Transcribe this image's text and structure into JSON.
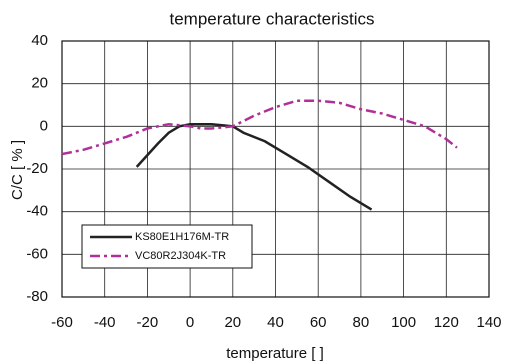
{
  "chart_data": {
    "type": "line",
    "title": "temperature characteristics",
    "xlabel": "temperature [     ]",
    "ylabel": "C/C [ % ]",
    "xlim": [
      -60,
      140
    ],
    "xticks": [
      -60,
      -40,
      -20,
      0,
      20,
      40,
      60,
      80,
      100,
      120,
      140
    ],
    "ylim": [
      -80,
      40
    ],
    "yticks": [
      -80,
      -60,
      -40,
      -20,
      0,
      20,
      40
    ],
    "grid": true,
    "legend": "lower left",
    "series": [
      {
        "name": "KS80E1H176M-TR",
        "color": "#222222",
        "dash": "solid",
        "x": [
          -25,
          -15,
          -10,
          -5,
          0,
          5,
          10,
          15,
          20,
          25,
          35,
          45,
          55,
          65,
          75,
          85
        ],
        "values": [
          -19,
          -8,
          -3,
          0,
          1,
          1,
          1,
          0.5,
          0,
          -3,
          -7,
          -13,
          -19,
          -26,
          -33,
          -39
        ]
      },
      {
        "name": "VC80R2J304K-TR",
        "color": "#b0309a",
        "dash": "dashdot",
        "x": [
          -60,
          -50,
          -40,
          -30,
          -20,
          -10,
          0,
          5,
          10,
          20,
          30,
          40,
          50,
          60,
          70,
          80,
          90,
          100,
          110,
          120,
          125
        ],
        "values": [
          -13,
          -11,
          -8,
          -5,
          -1,
          1,
          0,
          -1,
          -1,
          0,
          5,
          9,
          12,
          12,
          11,
          8,
          6,
          3,
          0,
          -6,
          -10
        ]
      }
    ]
  }
}
